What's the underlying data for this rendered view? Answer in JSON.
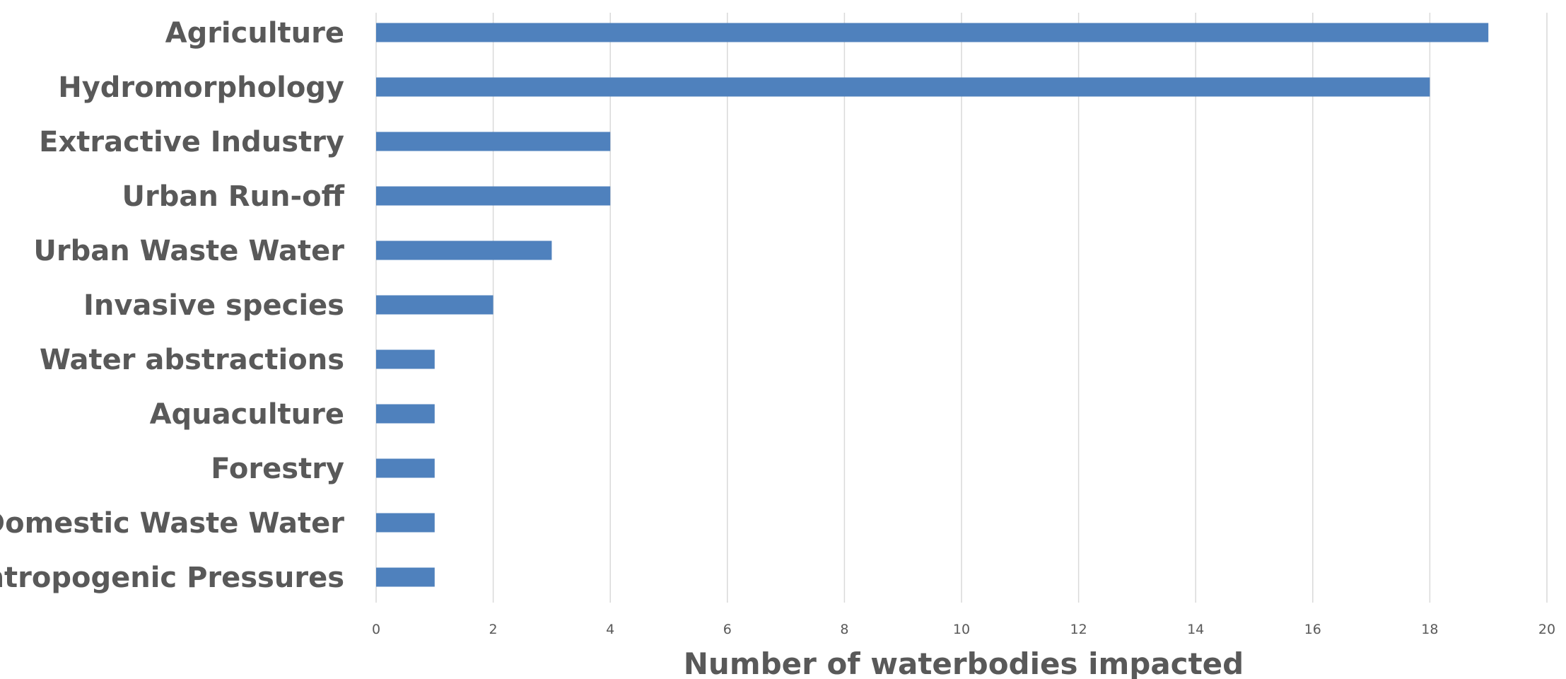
{
  "chart_data": {
    "type": "bar",
    "orientation": "horizontal",
    "categories": [
      "Agriculture",
      "Hydromorphology",
      "Extractive Industry",
      "Urban Run-off",
      "Urban Waste Water",
      "Invasive species",
      "Water abstractions",
      "Aquaculture",
      "Forestry",
      "Domestic Waste Water",
      "Antropogenic Pressures"
    ],
    "values": [
      19,
      18,
      4,
      4,
      3,
      2,
      1,
      1,
      1,
      1,
      1
    ],
    "xlabel": "Number of waterbodies impacted",
    "ylabel": "",
    "xlim": [
      0,
      20
    ],
    "xticks": [
      "0",
      "2",
      "4",
      "6",
      "8",
      "10",
      "12",
      "14",
      "16",
      "18",
      "20"
    ],
    "grid": "vertical",
    "legend": "none",
    "colors": {
      "bar": "#4f81bd",
      "grid": "#d9d9d9",
      "text": "#595959"
    }
  }
}
